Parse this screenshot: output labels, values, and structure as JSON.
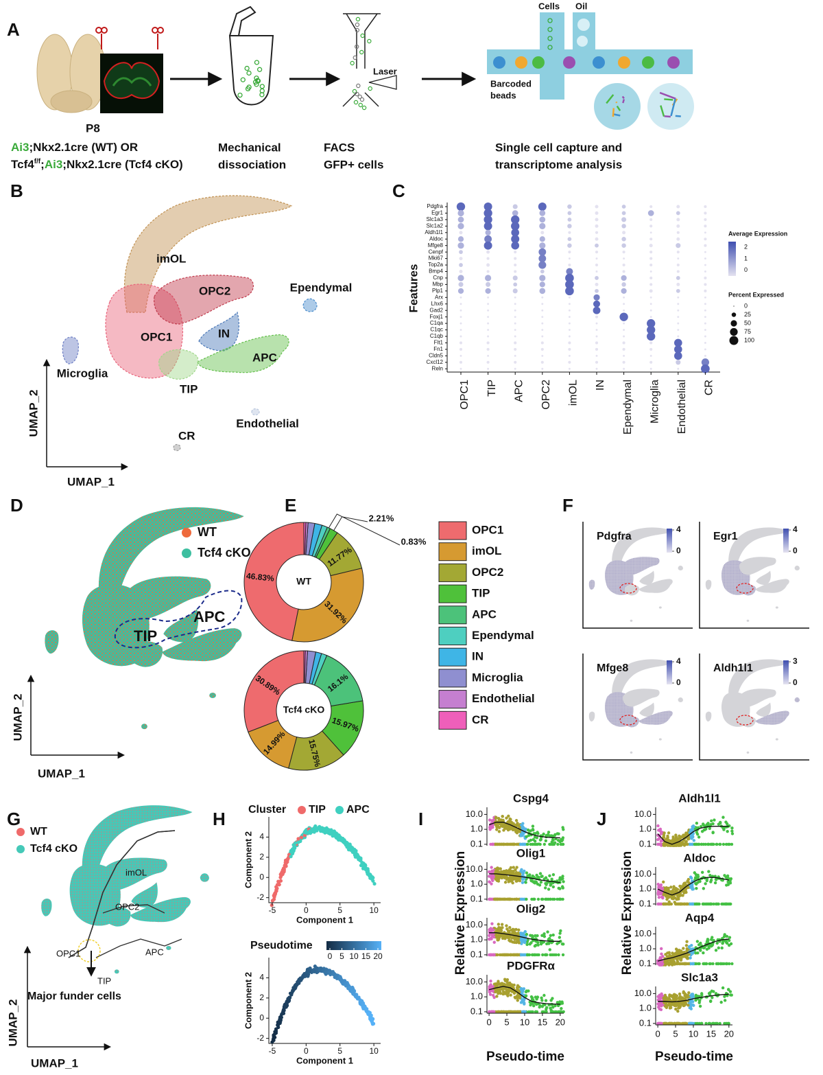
{
  "panel_labels": [
    "A",
    "B",
    "C",
    "D",
    "E",
    "F",
    "G",
    "H",
    "I",
    "J"
  ],
  "A": {
    "cells": "Cells",
    "oil": "Oil",
    "laser": "Laser",
    "barcoded_beads": [
      "Barcoded",
      "beads"
    ],
    "age": "P8",
    "genotype": [
      [
        "Ai3",
        ";Nkx2.1cre (WT)  OR"
      ],
      [
        "Tcf4",
        "f/f",
        ";",
        "Ai3",
        ";Nkx2.1cre (Tcf4 cKO)"
      ]
    ],
    "steps": [
      [
        "Mechanical",
        "dissociation"
      ],
      [
        "FACS",
        "GFP+ cells"
      ],
      [
        "Single cell capture and",
        "transcriptome analysis"
      ]
    ]
  },
  "B": {
    "clusters": [
      "imOL",
      "OPC2",
      "OPC1",
      "IN",
      "APC",
      "Ependymal",
      "Microglia",
      "TIP",
      "Endothelial",
      "CR"
    ],
    "colors": [
      "#c09050",
      "#c0394b",
      "#e8637a",
      "#4a78b8",
      "#62bf4a",
      "#4a8ccc",
      "#6d7fc4",
      "#9fd68a",
      "#b8c6dd",
      "#9a9a9a"
    ],
    "xlabel": "UMAP_1",
    "ylabel": "UMAP_2"
  },
  "C": {
    "ylabel": "Features",
    "features": [
      "Pdgfra",
      "Egr1",
      "Slc1a3",
      "Slc1a2",
      "Aldh1l1",
      "Aldoc",
      "Mfge8",
      "Cenpf",
      "Mki67",
      "Top2a",
      "Bmp4",
      "Cnp",
      "Mbp",
      "Plp1",
      "Arx",
      "Lhx6",
      "Gad2",
      "Foxj1",
      "C1qa",
      "C1qc",
      "C1qb",
      "Flt1",
      "Fn1",
      "Cldn5",
      "Cxcl12",
      "Reln"
    ],
    "clusters": [
      "OPC1",
      "TIP",
      "APC",
      "OPC2",
      "imOL",
      "IN",
      "Ependymal",
      "Microglia",
      "Endothelial",
      "CR"
    ],
    "percent": [
      [
        90,
        85,
        30,
        85,
        25,
        15,
        20,
        10,
        15,
        10
      ],
      [
        50,
        90,
        45,
        45,
        20,
        15,
        20,
        45,
        20,
        10
      ],
      [
        45,
        90,
        90,
        45,
        20,
        15,
        30,
        10,
        15,
        10
      ],
      [
        50,
        85,
        90,
        50,
        25,
        15,
        25,
        10,
        15,
        10
      ],
      [
        15,
        40,
        80,
        15,
        10,
        10,
        15,
        5,
        10,
        5
      ],
      [
        40,
        70,
        85,
        40,
        20,
        15,
        25,
        10,
        15,
        10
      ],
      [
        50,
        85,
        80,
        50,
        25,
        20,
        25,
        15,
        30,
        10
      ],
      [
        20,
        15,
        10,
        70,
        10,
        10,
        10,
        10,
        10,
        5
      ],
      [
        15,
        10,
        10,
        70,
        5,
        5,
        5,
        10,
        5,
        5
      ],
      [
        20,
        15,
        10,
        75,
        10,
        10,
        10,
        10,
        10,
        5
      ],
      [
        15,
        10,
        10,
        20,
        60,
        5,
        10,
        5,
        10,
        5
      ],
      [
        50,
        50,
        30,
        50,
        95,
        20,
        40,
        10,
        20,
        10
      ],
      [
        30,
        30,
        20,
        40,
        95,
        15,
        25,
        10,
        15,
        10
      ],
      [
        40,
        40,
        30,
        45,
        95,
        20,
        40,
        15,
        20,
        10
      ],
      [
        5,
        5,
        5,
        5,
        5,
        50,
        5,
        5,
        5,
        5
      ],
      [
        5,
        5,
        5,
        5,
        5,
        60,
        5,
        5,
        5,
        5
      ],
      [
        5,
        5,
        5,
        5,
        5,
        70,
        5,
        5,
        5,
        5
      ],
      [
        5,
        5,
        5,
        5,
        5,
        10,
        90,
        5,
        5,
        5
      ],
      [
        5,
        5,
        5,
        5,
        5,
        5,
        5,
        90,
        5,
        5
      ],
      [
        5,
        5,
        5,
        5,
        5,
        5,
        5,
        90,
        5,
        5
      ],
      [
        5,
        5,
        5,
        5,
        5,
        5,
        5,
        90,
        5,
        5
      ],
      [
        10,
        10,
        10,
        10,
        10,
        10,
        10,
        10,
        80,
        5
      ],
      [
        10,
        10,
        10,
        10,
        10,
        10,
        10,
        10,
        80,
        5
      ],
      [
        5,
        5,
        5,
        5,
        5,
        5,
        5,
        5,
        80,
        5
      ],
      [
        10,
        10,
        10,
        10,
        10,
        10,
        10,
        10,
        30,
        75
      ],
      [
        5,
        5,
        5,
        5,
        5,
        5,
        5,
        5,
        5,
        95
      ]
    ],
    "average": [
      [
        2,
        2,
        0,
        2,
        0,
        -0.5,
        0,
        -0.5,
        -0.5,
        -0.5
      ],
      [
        0.5,
        2,
        0.5,
        0.5,
        0,
        -0.5,
        0,
        0.5,
        0,
        -0.5
      ],
      [
        0.5,
        2,
        2,
        0.5,
        0,
        -0.5,
        0,
        -0.5,
        -0.5,
        -0.5
      ],
      [
        0.5,
        2,
        2,
        0.5,
        0,
        -0.5,
        0,
        -0.5,
        -0.5,
        -0.5
      ],
      [
        -0.5,
        0.5,
        2,
        -0.5,
        -0.5,
        -0.5,
        -0.5,
        -0.5,
        -0.5,
        -0.5
      ],
      [
        0.5,
        1.5,
        2,
        0.5,
        0,
        -0.5,
        0,
        -0.5,
        -0.5,
        -0.5
      ],
      [
        0.5,
        2,
        2,
        0.5,
        0,
        0,
        0,
        -0.5,
        0,
        -0.5
      ],
      [
        0,
        -0.5,
        -0.5,
        1.5,
        -0.5,
        -0.5,
        -0.5,
        -0.5,
        -0.5,
        -0.5
      ],
      [
        -0.5,
        -0.5,
        -0.5,
        1.5,
        -0.5,
        -0.5,
        -0.5,
        -0.5,
        -0.5,
        -0.5
      ],
      [
        0,
        -0.5,
        -0.5,
        1.5,
        -0.5,
        -0.5,
        -0.5,
        -0.5,
        -0.5,
        -0.5
      ],
      [
        -0.5,
        -0.5,
        -0.5,
        0,
        1.5,
        -0.5,
        -0.5,
        -0.5,
        -0.5,
        -0.5
      ],
      [
        0.5,
        0.5,
        0,
        0.5,
        2,
        0,
        0.5,
        -0.5,
        0,
        -0.5
      ],
      [
        0,
        0,
        0,
        0.5,
        2,
        -0.5,
        0,
        -0.5,
        -0.5,
        -0.5
      ],
      [
        0.5,
        0.5,
        0,
        0.5,
        2,
        0,
        0.5,
        -0.5,
        0,
        -0.5
      ],
      [
        -0.5,
        -0.5,
        -0.5,
        -0.5,
        -0.5,
        1.5,
        -0.5,
        -0.5,
        -0.5,
        -0.5
      ],
      [
        -0.5,
        -0.5,
        -0.5,
        -0.5,
        -0.5,
        2,
        -0.5,
        -0.5,
        -0.5,
        -0.5
      ],
      [
        -0.5,
        -0.5,
        -0.5,
        -0.5,
        -0.5,
        2,
        -0.5,
        -0.5,
        -0.5,
        -0.5
      ],
      [
        -0.5,
        -0.5,
        -0.5,
        -0.5,
        -0.5,
        -0.5,
        2,
        -0.5,
        -0.5,
        -0.5
      ],
      [
        -0.5,
        -0.5,
        -0.5,
        -0.5,
        -0.5,
        -0.5,
        -0.5,
        2,
        -0.5,
        -0.5
      ],
      [
        -0.5,
        -0.5,
        -0.5,
        -0.5,
        -0.5,
        -0.5,
        -0.5,
        2,
        -0.5,
        -0.5
      ],
      [
        -0.5,
        -0.5,
        -0.5,
        -0.5,
        -0.5,
        -0.5,
        -0.5,
        2,
        -0.5,
        -0.5
      ],
      [
        -0.5,
        -0.5,
        -0.5,
        -0.5,
        -0.5,
        -0.5,
        -0.5,
        -0.5,
        2,
        -0.5
      ],
      [
        -0.5,
        -0.5,
        -0.5,
        -0.5,
        -0.5,
        -0.5,
        -0.5,
        -0.5,
        2,
        -0.5
      ],
      [
        -0.5,
        -0.5,
        -0.5,
        -0.5,
        -0.5,
        -0.5,
        -0.5,
        -0.5,
        2,
        -0.5
      ],
      [
        -0.5,
        -0.5,
        -0.5,
        -0.5,
        -0.5,
        -0.5,
        -0.5,
        -0.5,
        0,
        1.5
      ],
      [
        -0.5,
        -0.5,
        -0.5,
        -0.5,
        -0.5,
        -0.5,
        -0.5,
        -0.5,
        -0.5,
        2
      ]
    ],
    "avg_title": "Average Expression",
    "avg_lim": [
      -0.5,
      2.5
    ],
    "avg_ticks": [
      0,
      1,
      2
    ],
    "pct_title": "Percent Expressed",
    "pct_ticks": [
      0,
      25,
      50,
      75,
      100
    ]
  },
  "D": {
    "legend": [
      "WT",
      "Tcf4 cKO"
    ],
    "colors": [
      "#ee6a3c",
      "#3dbfa0"
    ],
    "labels": [
      "TIP",
      "APC"
    ],
    "xlabel": "UMAP_1",
    "ylabel": "UMAP_2"
  },
  "E": {
    "type": "donut",
    "categories": [
      "OPC1",
      "imOL",
      "OPC2",
      "TIP",
      "APC",
      "Ependymal",
      "IN",
      "Microglia",
      "Endothelial",
      "CR"
    ],
    "colors": [
      "#ee6b6e",
      "#d69a31",
      "#a3a834",
      "#4fc13a",
      "#4cc27a",
      "#4ecfc0",
      "#3fb5e6",
      "#8f8fd0",
      "#c57fd0",
      "#ef5fba"
    ],
    "series": [
      {
        "name": "WT",
        "values": [
          46.83,
          31.92,
          11.77,
          2.21,
          0.83,
          1.5,
          2.0,
          1.8,
          0.6,
          0.54
        ],
        "value_labels": [
          "46.83%",
          "31.92%",
          "11.77%",
          "2.21%",
          "0.83%",
          null,
          null,
          null,
          null,
          null
        ]
      },
      {
        "name": "Tcf4 cKO",
        "values": [
          30.89,
          14.99,
          15.75,
          15.97,
          16.1,
          1.5,
          1.6,
          2.2,
          0.6,
          0.4
        ],
        "value_labels": [
          "30.89%",
          "14.99%",
          "15.75%",
          "15.97%",
          "16.1%",
          null,
          null,
          null,
          null,
          null
        ]
      }
    ]
  },
  "F": {
    "genes": [
      "Pdgfra",
      "Egr1",
      "Mfge8",
      "Aldh1l1"
    ],
    "scale_ticks": [
      [
        4,
        0
      ],
      [
        4,
        0
      ],
      [
        4,
        0
      ],
      [
        3,
        0
      ]
    ]
  },
  "G": {
    "legend": [
      "WT",
      "Tcf4 cKO"
    ],
    "colors": [
      "#ef6a6a",
      "#45c9b8"
    ],
    "labels": [
      "imOL",
      "OPC2",
      "OPC1",
      "APC",
      "TIP"
    ],
    "note": "Major funder cells",
    "xlabel": "UMAP_1",
    "ylabel": "UMAP_2"
  },
  "H": {
    "legend_title": "Cluster",
    "legend": [
      "TIP",
      "APC"
    ],
    "colors": [
      "#ef6a6a",
      "#3fd0c0"
    ],
    "pseudotime_title": "Pseudotime",
    "pseudotime_ticks": [
      0,
      5,
      10,
      15,
      20
    ],
    "pseudotime_colors": [
      "#132b43",
      "#56b1f7"
    ],
    "xlabel": "Component 1",
    "ylabel": "Component 2",
    "xlim": [
      -5.5,
      11
    ],
    "ylim": [
      -2.5,
      6
    ],
    "xticks": [
      -5,
      0,
      5,
      10
    ],
    "yticks": [
      -2,
      0,
      2,
      4
    ]
  },
  "I": {
    "genes": [
      "Cspg4",
      "Olig1",
      "Olig2",
      "PDGFRα"
    ],
    "ylabel": "Relative Expression",
    "xlabel": "Pseudo-time",
    "xlim": [
      -0.6,
      21
    ],
    "ylim": [
      0.08,
      30
    ],
    "log_y": true,
    "xticks": [
      0,
      5,
      10,
      15,
      20
    ],
    "yticks": [
      0.1,
      {
        "value": 1,
        "label": "1.0"
      },
      {
        "value": 10,
        "label": "10.0"
      }
    ],
    "trend_x": [
      0,
      2,
      4,
      6,
      8,
      10,
      12,
      14,
      16,
      18,
      20
    ],
    "trends": [
      [
        2,
        3,
        3,
        2,
        1.2,
        0.7,
        0.45,
        0.35,
        0.3,
        0.28,
        0.27
      ],
      [
        5,
        5,
        4.5,
        4,
        3.5,
        3,
        2.5,
        2,
        1.7,
        1.5,
        1.3
      ],
      [
        3,
        3,
        2.6,
        2.2,
        1.8,
        1.4,
        1.1,
        0.95,
        0.85,
        0.8,
        0.8
      ],
      [
        3,
        4,
        5,
        4,
        2,
        0.9,
        0.5,
        0.4,
        0.35,
        0.33,
        0.32
      ]
    ]
  },
  "J": {
    "genes": [
      "Aldh1l1",
      "Aldoc",
      "Aqp4",
      "Slc1a3"
    ],
    "ylabel": "Relative Expression",
    "xlabel": "Pseudo-time",
    "xlim": [
      -0.6,
      21
    ],
    "ylim": [
      0.08,
      30
    ],
    "log_y": true,
    "xticks": [
      0,
      5,
      10,
      15,
      20
    ],
    "yticks": [
      0.1,
      {
        "value": 1,
        "label": "1.0"
      },
      {
        "value": 10,
        "label": "10.0"
      }
    ],
    "trend_x": [
      0,
      2,
      4,
      6,
      8,
      10,
      12,
      14,
      16,
      18,
      20
    ],
    "trends": [
      [
        0.5,
        0.15,
        0.1,
        0.15,
        0.3,
        0.7,
        1.2,
        1.5,
        1.6,
        1.6,
        1.6
      ],
      [
        1,
        0.6,
        0.4,
        0.6,
        1.5,
        3,
        5,
        6,
        6,
        5,
        4
      ],
      [
        0.15,
        0.2,
        0.25,
        0.35,
        0.5,
        0.8,
        1.3,
        2,
        3,
        4,
        4.5
      ],
      [
        3,
        3,
        2.8,
        3,
        3.5,
        4.5,
        5.5,
        6.5,
        7.5,
        8.5,
        9
      ]
    ]
  }
}
